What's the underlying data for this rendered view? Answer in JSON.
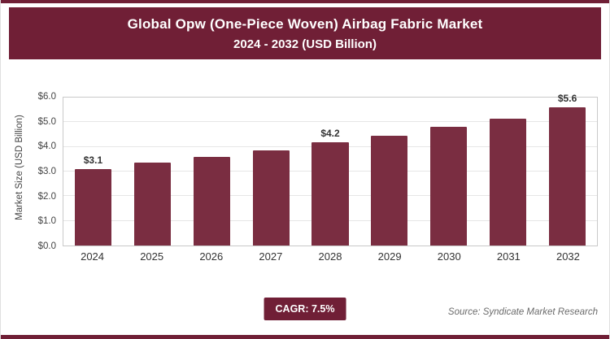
{
  "header": {
    "title_line1": "Global Opw (One-Piece Woven) Airbag Fabric Market",
    "title_line2": "2024 - 2032 (USD Billion)"
  },
  "chart_data": {
    "type": "bar",
    "categories": [
      "2024",
      "2025",
      "2026",
      "2027",
      "2028",
      "2029",
      "2030",
      "2031",
      "2032"
    ],
    "values": [
      3.1,
      3.35,
      3.6,
      3.85,
      4.2,
      4.45,
      4.8,
      5.15,
      5.6
    ],
    "data_labels": [
      "$3.1",
      "",
      "",
      "",
      "$4.2",
      "",
      "",
      "",
      "$5.6"
    ],
    "title": "Global Opw (One-Piece Woven) Airbag Fabric Market 2024 - 2032 (USD Billion)",
    "xlabel": "",
    "ylabel": "Market Size (USD Billion)",
    "ylim": [
      0,
      6
    ],
    "yticks": [
      "$0.0",
      "$1.0",
      "$2.0",
      "$3.0",
      "$4.0",
      "$5.0",
      "$6.0"
    ],
    "grid": "horizontal",
    "legend": "none",
    "bar_color": "#7a2d41"
  },
  "footer": {
    "cagr_label": "CAGR: 7.5%",
    "source": "Source: Syndicate Market Research"
  },
  "colors": {
    "accent_maroon": "#701f36",
    "bar_fill": "#7a2d41",
    "grid_line": "#e6e6e6",
    "plot_border": "#c9c9c9"
  }
}
